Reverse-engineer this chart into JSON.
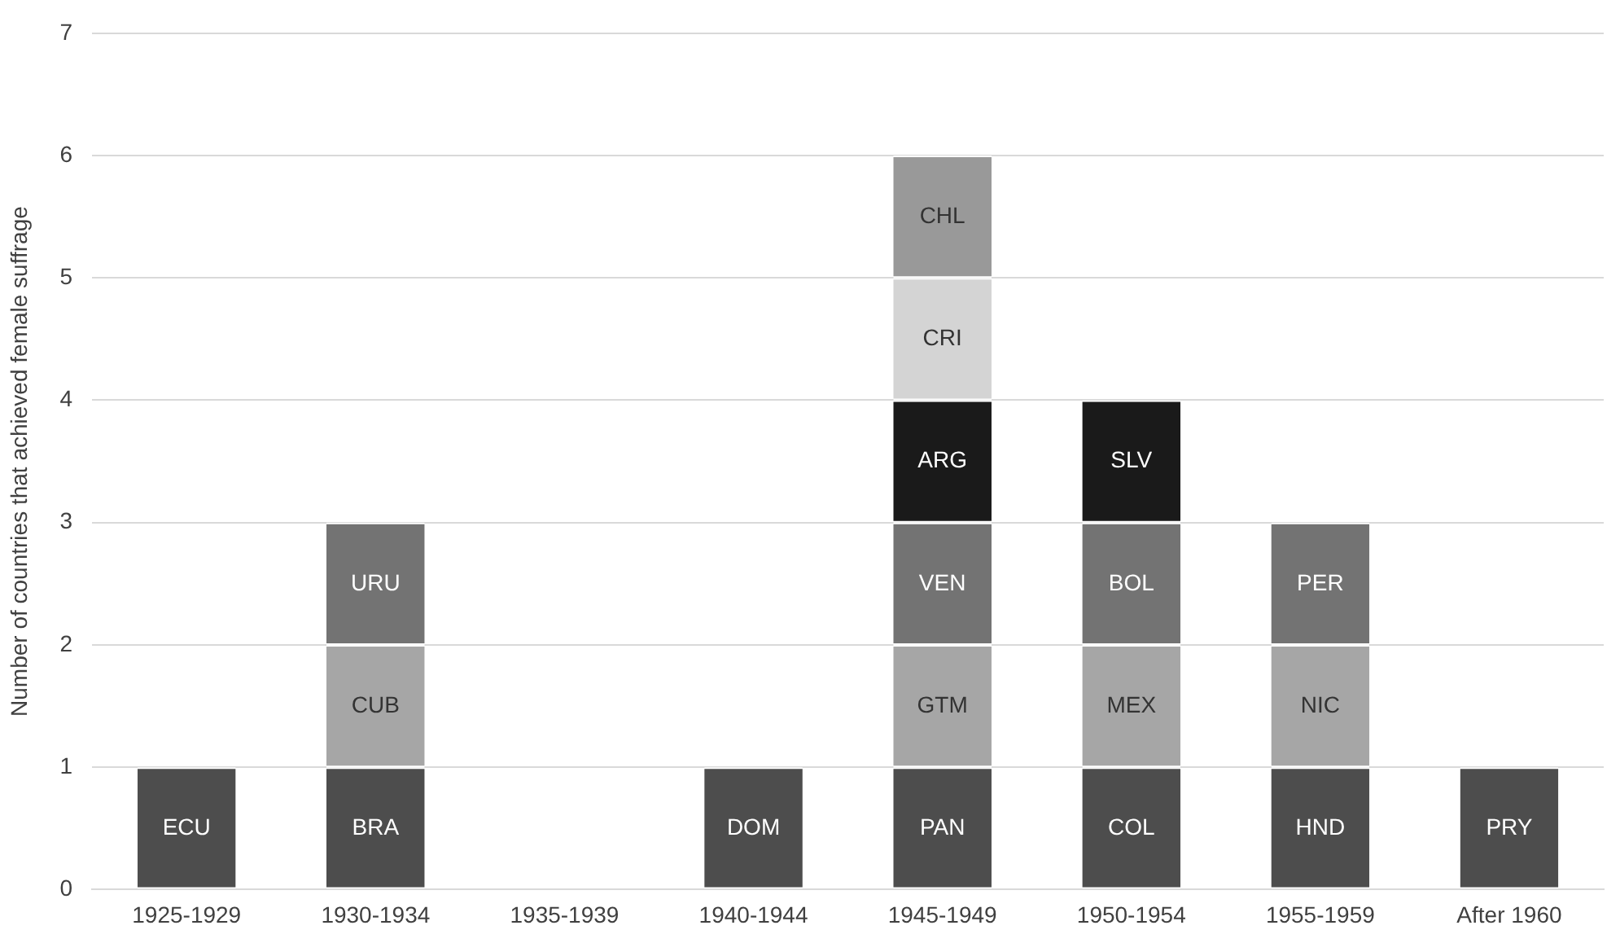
{
  "chart_data": {
    "type": "bar",
    "stacked": true,
    "ylabel": "Number of countries that achieved female suffrage",
    "categories": [
      "1925-1929",
      "1930-1934",
      "1935-1939",
      "1940-1944",
      "1945-1949",
      "1950-1954",
      "1955-1959",
      "After 1960"
    ],
    "series": [
      {
        "color": "#4d4d4d",
        "values": [
          1,
          1,
          null,
          1,
          1,
          1,
          1,
          1
        ],
        "value_labels": [
          "ECU",
          "BRA",
          null,
          "DOM",
          "PAN",
          "COL",
          "HND",
          "PRY"
        ]
      },
      {
        "color": "#a6a6a6",
        "values": [
          null,
          1,
          null,
          null,
          1,
          1,
          1,
          null
        ],
        "value_labels": [
          null,
          "CUB",
          null,
          null,
          "GTM",
          "MEX",
          "NIC",
          null
        ]
      },
      {
        "color": "#737373",
        "values": [
          null,
          1,
          null,
          null,
          1,
          1,
          1,
          null
        ],
        "value_labels": [
          null,
          "URU",
          null,
          null,
          "VEN",
          "BOL",
          "PER",
          null
        ]
      },
      {
        "color": "#1a1a1a",
        "values": [
          null,
          null,
          null,
          null,
          1,
          1,
          null,
          null
        ],
        "value_labels": [
          null,
          null,
          null,
          null,
          "ARG",
          "SLV",
          null,
          null
        ]
      },
      {
        "color": "#d4d4d4",
        "values": [
          null,
          null,
          null,
          null,
          1,
          null,
          null,
          null
        ],
        "value_labels": [
          null,
          null,
          null,
          null,
          "CRI",
          null,
          null,
          null
        ]
      },
      {
        "color": "#999999",
        "values": [
          null,
          null,
          null,
          null,
          1,
          null,
          null,
          null
        ],
        "value_labels": [
          null,
          null,
          null,
          null,
          "CHL",
          null,
          null,
          null
        ]
      }
    ],
    "ylim": [
      0,
      7
    ],
    "yticks": [
      0,
      1,
      2,
      3,
      4,
      5,
      6,
      7
    ],
    "grid": "y",
    "legend": false
  }
}
